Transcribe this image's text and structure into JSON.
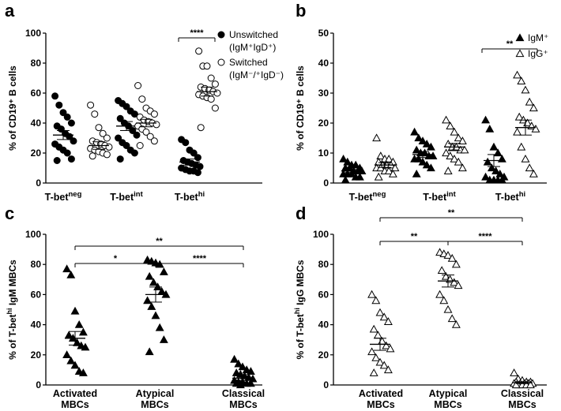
{
  "chart_data": [
    {
      "panel": "a",
      "type": "scatter",
      "ylabel": "% of CD19⁺ B cells",
      "ylim": [
        0,
        100
      ],
      "yticks": [
        0,
        20,
        40,
        60,
        80,
        100
      ],
      "categories": [
        {
          "base": "T-bet",
          "sup": "neg"
        },
        {
          "base": "T-bet",
          "sup": "int"
        },
        {
          "base": "T-bet",
          "sup": "hi"
        }
      ],
      "legend": [
        {
          "marker": "filled-circle",
          "line1": "Unswitched",
          "line2": "(IgM⁺IgD⁺)"
        },
        {
          "marker": "open-circle",
          "line1": "Switched",
          "line2": "(IgM⁻/⁺IgD⁻)"
        }
      ],
      "series": [
        {
          "name": "Unswitched",
          "marker": "filled-circle",
          "groups": [
            [
              58,
              52,
              47,
              44,
              40,
              38,
              36,
              33,
              31,
              28,
              26,
              24,
              22,
              20,
              16,
              15
            ],
            [
              55,
              53,
              51,
              48,
              46,
              43,
              40,
              38,
              35,
              32,
              30,
              27,
              25,
              22,
              20,
              16
            ],
            [
              29,
              27,
              22,
              20,
              17,
              15,
              14,
              13,
              12,
              11,
              10,
              9,
              8,
              8,
              7
            ]
          ],
          "mean": [
            32,
            38,
            14
          ],
          "sem": [
            3,
            3,
            2
          ]
        },
        {
          "name": "Switched",
          "marker": "open-circle",
          "groups": [
            [
              52,
              46,
              37,
              33,
              30,
              28,
              27,
              26,
              25,
              24,
              23,
              22,
              21,
              20,
              19,
              18
            ],
            [
              65,
              56,
              50,
              48,
              46,
              44,
              42,
              41,
              40,
              39,
              38,
              36,
              34,
              31,
              28,
              25
            ],
            [
              88,
              78,
              78,
              70,
              66,
              64,
              63,
              62,
              61,
              60,
              59,
              58,
              57,
              56,
              50,
              37
            ]
          ],
          "mean": [
            25,
            40,
            61
          ],
          "sem": [
            2.5,
            2.5,
            3
          ]
        }
      ],
      "significance": [
        {
          "label": "****",
          "between": "T-bet hi pair"
        }
      ]
    },
    {
      "panel": "b",
      "type": "scatter",
      "ylabel": "% of CD19⁺ B cells",
      "ylim": [
        0,
        50
      ],
      "yticks": [
        0,
        10,
        20,
        30,
        40,
        50
      ],
      "categories": [
        {
          "base": "T-bet",
          "sup": "neg"
        },
        {
          "base": "T-bet",
          "sup": "int"
        },
        {
          "base": "T-bet",
          "sup": "hi"
        }
      ],
      "legend": [
        {
          "marker": "filled-triangle",
          "label": "IgM⁺"
        },
        {
          "marker": "open-triangle",
          "label": "IgG⁺"
        }
      ],
      "series": [
        {
          "name": "IgM+",
          "marker": "filled-triangle",
          "groups": [
            [
              8,
              7,
              6,
              6,
              5,
              5,
              5,
              4,
              4,
              4,
              3,
              3,
              3,
              2,
              2,
              1
            ],
            [
              17,
              15,
              14,
              13,
              12,
              11,
              10,
              10,
              9,
              9,
              8,
              8,
              7,
              6,
              5,
              3
            ],
            [
              21,
              18,
              12,
              10,
              8,
              7,
              5,
              4,
              3,
              2,
              2,
              1,
              1,
              1,
              1
            ]
          ],
          "mean": [
            4,
            9.5,
            7.5
          ],
          "sem": [
            0.5,
            1,
            2
          ]
        },
        {
          "name": "IgG+",
          "marker": "open-triangle",
          "groups": [
            [
              15,
              9,
              8,
              8,
              7,
              7,
              6,
              6,
              6,
              5,
              5,
              5,
              4,
              4,
              3,
              2
            ],
            [
              21,
              19,
              17,
              15,
              14,
              13,
              12,
              12,
              11,
              11,
              10,
              9,
              8,
              7,
              5,
              4
            ],
            [
              36,
              34,
              31,
              27,
              25,
              22,
              21,
              20,
              19,
              18,
              17,
              12,
              8,
              5,
              3
            ]
          ],
          "mean": [
            6,
            12,
            18.5
          ],
          "sem": [
            0.8,
            1.2,
            2.5
          ]
        }
      ],
      "significance": [
        {
          "label": "**",
          "between": "T-bet hi pair"
        }
      ]
    },
    {
      "panel": "c",
      "type": "scatter",
      "ylabel_base": "% of T-bet",
      "ylabel_sup": "hi",
      "ylabel_rest": " IgM MBCs",
      "ylim": [
        0,
        100
      ],
      "yticks": [
        0,
        20,
        40,
        60,
        80,
        100
      ],
      "categories": [
        {
          "line1": "Activated",
          "line2": "MBCs"
        },
        {
          "line1": "Atypical",
          "line2": "MBCs"
        },
        {
          "line1": "Classical",
          "line2": "MBCs"
        }
      ],
      "series": [
        {
          "name": "IgM MBCs",
          "marker": "filled-triangle",
          "groups": [
            [
              77,
              73,
              49,
              40,
              35,
              33,
              31,
              28,
              26,
              25,
              20,
              16,
              13,
              9,
              8
            ],
            [
              83,
              82,
              81,
              80,
              75,
              72,
              68,
              65,
              62,
              60,
              56,
              52,
              46,
              38,
              30,
              22
            ],
            [
              17,
              14,
              12,
              10,
              9,
              8,
              7,
              6,
              5,
              4,
              3,
              2,
              2,
              1,
              1,
              1,
              0
            ]
          ],
          "mean": [
            31,
            60,
            4.5
          ],
          "sem": [
            4.5,
            5,
            1.5
          ]
        }
      ],
      "significance": [
        {
          "label": "**",
          "between": "Activated vs Classical"
        },
        {
          "label": "*",
          "between": "Activated vs Atypical"
        },
        {
          "label": "****",
          "between": "Atypical vs Classical"
        }
      ]
    },
    {
      "panel": "d",
      "type": "scatter",
      "ylabel_base": "% of T-bet",
      "ylabel_sup": "hi",
      "ylabel_rest": " IgG MBCs",
      "ylim": [
        0,
        100
      ],
      "yticks": [
        0,
        20,
        40,
        60,
        80,
        100
      ],
      "categories": [
        {
          "line1": "Activated",
          "line2": "MBCs"
        },
        {
          "line1": "Atypical",
          "line2": "MBCs"
        },
        {
          "line1": "Classical",
          "line2": "MBCs"
        }
      ],
      "series": [
        {
          "name": "IgG MBCs",
          "marker": "open-triangle",
          "groups": [
            [
              60,
              56,
              48,
              45,
              42,
              37,
              33,
              29,
              26,
              24,
              22,
              18,
              15,
              13,
              10,
              8
            ],
            [
              88,
              87,
              86,
              84,
              80,
              76,
              72,
              70,
              68,
              66,
              60,
              56,
              50,
              44,
              40
            ],
            [
              8,
              4,
              3,
              2,
              2,
              2,
              1,
              1,
              1,
              1,
              1,
              0,
              0,
              0,
              0,
              0
            ]
          ],
          "mean": [
            27,
            69,
            1.5
          ],
          "sem": [
            4,
            4,
            0.6
          ]
        }
      ],
      "significance": [
        {
          "label": "**",
          "between": "Activated vs Classical"
        },
        {
          "label": "**",
          "between": "Activated vs Atypical"
        },
        {
          "label": "****",
          "between": "Atypical vs Classical"
        }
      ]
    }
  ]
}
